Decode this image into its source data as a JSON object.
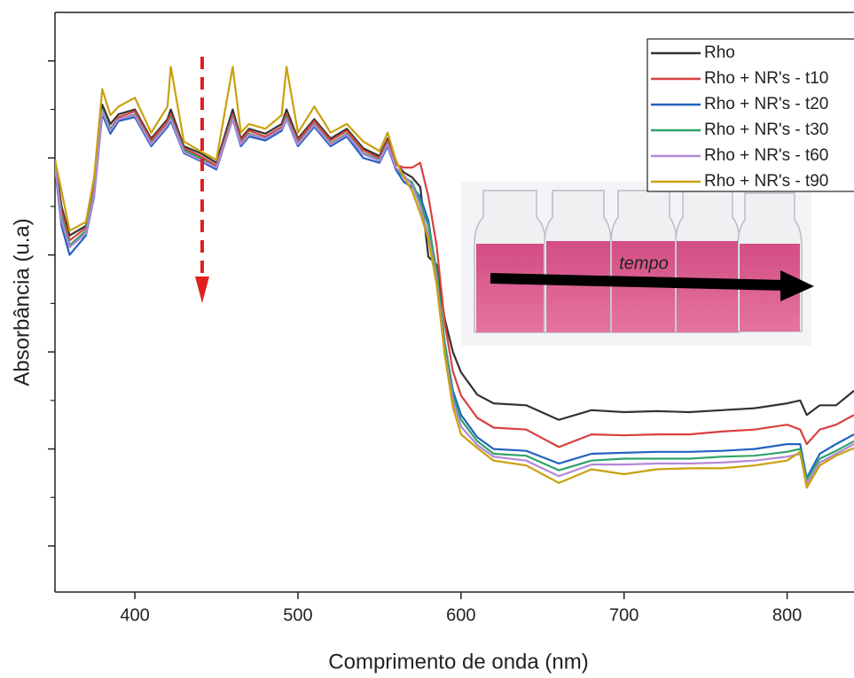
{
  "chart_data": {
    "type": "line",
    "xlabel": "Comprimento de onda (nm)",
    "ylabel": "Absorbância (u.a)",
    "annotation": "tempo",
    "x": [
      351,
      355,
      360,
      370,
      375,
      380,
      385,
      390,
      400,
      410,
      420,
      422,
      430,
      440,
      450,
      460,
      465,
      470,
      480,
      490,
      493,
      500,
      510,
      520,
      530,
      540,
      550,
      555,
      560,
      565,
      570,
      575,
      580,
      585,
      590,
      595,
      600,
      610,
      620,
      640,
      660,
      680,
      700,
      720,
      740,
      760,
      780,
      800,
      808,
      812,
      820,
      830,
      841
    ],
    "xlim": [
      351,
      841
    ],
    "xticks": [
      400,
      500,
      600,
      700,
      800
    ],
    "ylim": [
      0.525,
      6.5
    ],
    "yticks": [
      1,
      2,
      3,
      4,
      5,
      6
    ],
    "yminorticks": [
      1.5,
      2.5,
      3.5,
      4.5,
      5.5
    ],
    "series": [
      {
        "name": "Rho",
        "color": "#333333",
        "values": [
          4.98,
          4.5,
          4.2,
          4.3,
          4.75,
          5.55,
          5.35,
          5.45,
          5.5,
          5.2,
          5.4,
          5.5,
          5.12,
          5.05,
          4.95,
          5.5,
          5.2,
          5.3,
          5.25,
          5.35,
          5.5,
          5.2,
          5.4,
          5.2,
          5.3,
          5.1,
          5.02,
          5.2,
          4.95,
          4.85,
          4.8,
          4.7,
          3.98,
          3.9,
          3.34,
          3.0,
          2.79,
          2.56,
          2.47,
          2.45,
          2.3,
          2.4,
          2.38,
          2.39,
          2.38,
          2.4,
          2.42,
          2.47,
          2.5,
          2.35,
          2.45,
          2.45,
          2.6
        ]
      },
      {
        "name": "Rho + NR's - t10",
        "color": "#d94040",
        "values": [
          4.95,
          4.45,
          4.15,
          4.28,
          4.7,
          5.5,
          5.3,
          5.42,
          5.48,
          5.18,
          5.38,
          5.45,
          5.1,
          5.02,
          4.92,
          5.45,
          5.18,
          5.28,
          5.22,
          5.32,
          5.45,
          5.18,
          5.38,
          5.18,
          5.28,
          5.08,
          5.0,
          5.18,
          4.93,
          4.9,
          4.9,
          4.95,
          4.6,
          4.1,
          3.3,
          2.8,
          2.55,
          2.32,
          2.22,
          2.2,
          2.02,
          2.15,
          2.14,
          2.15,
          2.15,
          2.18,
          2.2,
          2.25,
          2.2,
          2.05,
          2.2,
          2.25,
          2.35
        ]
      },
      {
        "name": "Rho + NR's - t20",
        "color": "#2362c0",
        "values": [
          4.9,
          4.3,
          4.0,
          4.2,
          4.6,
          5.45,
          5.25,
          5.38,
          5.42,
          5.12,
          5.32,
          5.38,
          5.05,
          4.97,
          4.88,
          5.4,
          5.12,
          5.22,
          5.18,
          5.28,
          5.4,
          5.12,
          5.32,
          5.12,
          5.22,
          5.0,
          4.95,
          5.12,
          4.88,
          4.75,
          4.7,
          4.6,
          4.35,
          3.8,
          3.1,
          2.6,
          2.35,
          2.12,
          2.0,
          1.98,
          1.85,
          1.95,
          1.96,
          1.97,
          1.97,
          1.98,
          2.0,
          2.05,
          2.05,
          1.7,
          1.95,
          2.05,
          2.15
        ]
      },
      {
        "name": "Rho + NR's - t30",
        "color": "#2fa36a",
        "values": [
          4.93,
          4.4,
          4.1,
          4.25,
          4.65,
          5.5,
          5.3,
          5.4,
          5.45,
          5.15,
          5.35,
          5.42,
          5.08,
          5.0,
          4.9,
          5.42,
          5.15,
          5.25,
          5.2,
          5.3,
          5.42,
          5.15,
          5.35,
          5.15,
          5.25,
          5.05,
          4.98,
          5.15,
          4.9,
          4.8,
          4.75,
          4.55,
          4.3,
          3.85,
          3.1,
          2.55,
          2.3,
          2.08,
          1.95,
          1.93,
          1.78,
          1.88,
          1.9,
          1.9,
          1.9,
          1.92,
          1.93,
          1.97,
          2.0,
          1.68,
          1.9,
          1.98,
          2.08
        ]
      },
      {
        "name": "Rho + NR's - t60",
        "color": "#b487d6",
        "values": [
          4.92,
          4.35,
          4.08,
          4.22,
          4.62,
          5.48,
          5.28,
          5.4,
          5.44,
          5.14,
          5.34,
          5.4,
          5.06,
          4.98,
          4.9,
          5.4,
          5.14,
          5.24,
          5.2,
          5.3,
          5.4,
          5.14,
          5.34,
          5.14,
          5.24,
          5.04,
          4.97,
          5.14,
          4.9,
          4.82,
          4.72,
          4.5,
          4.2,
          3.75,
          3.0,
          2.5,
          2.23,
          2.04,
          1.92,
          1.88,
          1.72,
          1.84,
          1.84,
          1.85,
          1.85,
          1.86,
          1.88,
          1.92,
          1.95,
          1.64,
          1.86,
          1.95,
          2.05
        ]
      },
      {
        "name": "Rho + NR's - t90",
        "color": "#c9a10c",
        "values": [
          4.98,
          4.66,
          4.25,
          4.34,
          4.8,
          5.71,
          5.44,
          5.53,
          5.62,
          5.26,
          5.53,
          5.94,
          5.17,
          5.07,
          4.98,
          5.94,
          5.26,
          5.35,
          5.3,
          5.44,
          5.94,
          5.26,
          5.53,
          5.26,
          5.35,
          5.17,
          5.07,
          5.26,
          4.98,
          4.8,
          4.66,
          4.43,
          4.16,
          3.7,
          2.97,
          2.43,
          2.15,
          2.01,
          1.88,
          1.83,
          1.65,
          1.79,
          1.74,
          1.79,
          1.8,
          1.8,
          1.83,
          1.88,
          1.97,
          1.6,
          1.83,
          1.93,
          2.01
        ]
      }
    ]
  }
}
